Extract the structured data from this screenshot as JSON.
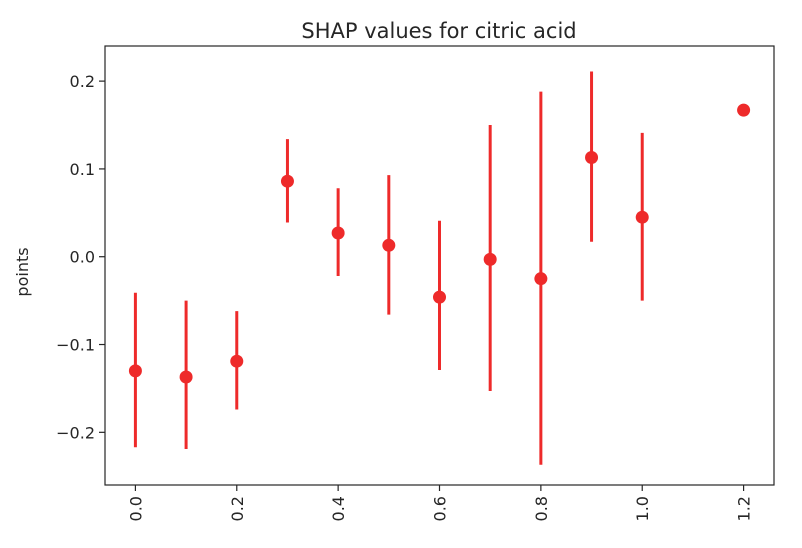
{
  "chart_data": {
    "type": "scatter",
    "title": "SHAP values for citric acid",
    "xlabel": "",
    "ylabel": "points",
    "xlim": [
      -0.06,
      1.26
    ],
    "ylim": [
      -0.26,
      0.24
    ],
    "x_ticks": [
      0.0,
      0.2,
      0.4,
      0.6,
      0.8,
      1.0,
      1.2
    ],
    "x_tick_labels": [
      "0.0",
      "0.2",
      "0.4",
      "0.6",
      "0.8",
      "1.0",
      "1.2"
    ],
    "y_ticks": [
      -0.2,
      -0.1,
      0.0,
      0.1,
      0.2
    ],
    "y_tick_labels": [
      "−0.2",
      "−0.1",
      "0.0",
      "0.1",
      "0.2"
    ],
    "x_tick_rotation": "vertical",
    "grid": false,
    "legend": "none",
    "color": "#ee2a2a",
    "points": [
      {
        "x": 0.0,
        "y": -0.13,
        "low": -0.217,
        "high": -0.041
      },
      {
        "x": 0.1,
        "y": -0.137,
        "low": -0.219,
        "high": -0.05
      },
      {
        "x": 0.2,
        "y": -0.119,
        "low": -0.174,
        "high": -0.062
      },
      {
        "x": 0.3,
        "y": 0.086,
        "low": 0.039,
        "high": 0.134
      },
      {
        "x": 0.4,
        "y": 0.027,
        "low": -0.022,
        "high": 0.078
      },
      {
        "x": 0.5,
        "y": 0.013,
        "low": -0.066,
        "high": 0.093
      },
      {
        "x": 0.6,
        "y": -0.046,
        "low": -0.129,
        "high": 0.041
      },
      {
        "x": 0.7,
        "y": -0.003,
        "low": -0.153,
        "high": 0.15
      },
      {
        "x": 0.8,
        "y": -0.025,
        "low": -0.237,
        "high": 0.188
      },
      {
        "x": 0.9,
        "y": 0.113,
        "low": 0.017,
        "high": 0.211
      },
      {
        "x": 1.0,
        "y": 0.045,
        "low": -0.05,
        "high": 0.141
      },
      {
        "x": 1.2,
        "y": 0.167,
        "low": 0.167,
        "high": 0.167
      }
    ]
  }
}
